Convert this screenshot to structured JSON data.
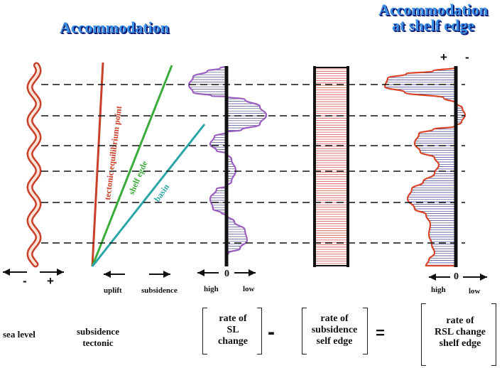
{
  "titles": {
    "accommodation": "Accommodation",
    "shelf_edge_line1": "Accommodation",
    "shelf_edge_line2": "at shelf edge"
  },
  "diagram_labels": {
    "tectonic_line": "tectonic equilibrium point",
    "shelf_line": "shelf egde",
    "basin_line": "basin",
    "plus_top": "+",
    "minus_top": "-"
  },
  "axes": {
    "sea_level_minus": "-",
    "sea_level_plus": "+",
    "uplift": "uplift",
    "subsidence": "subsidence",
    "zero_sl": "0",
    "high_sl": "high",
    "low_sl": "low",
    "zero_rsl": "0",
    "high_rsl": "high",
    "low_rsl": "low"
  },
  "equation": {
    "sea_level": "sea level",
    "subsidence_tectonic_1": "subsidence",
    "subsidence_tectonic_2": "tectonic",
    "term1_line1": "rate of",
    "term1_line2": "SL",
    "term1_line3": "change",
    "minus": "-",
    "term2_line1": "rate of",
    "term2_line2": "subsidence",
    "term2_line3": "self edge",
    "equals": "=",
    "term3_line1": "rate of",
    "term3_line2": "RSL change",
    "term3_line3": "shelf edge"
  },
  "colors": {
    "title_fill": "#3a8fe8",
    "title_outline": "#0a1a70",
    "tectonic_line": "#c8402a",
    "shelf_line": "#3bab3b",
    "basin_line": "#2aa6a6",
    "sl_curve": "#9b5fbf",
    "sl_hatch": "#4a4a8a",
    "subsidence_hatch": "#d85050",
    "rsl_curve": "#d8452a",
    "rsl_hatch": "#3a3a8a"
  }
}
